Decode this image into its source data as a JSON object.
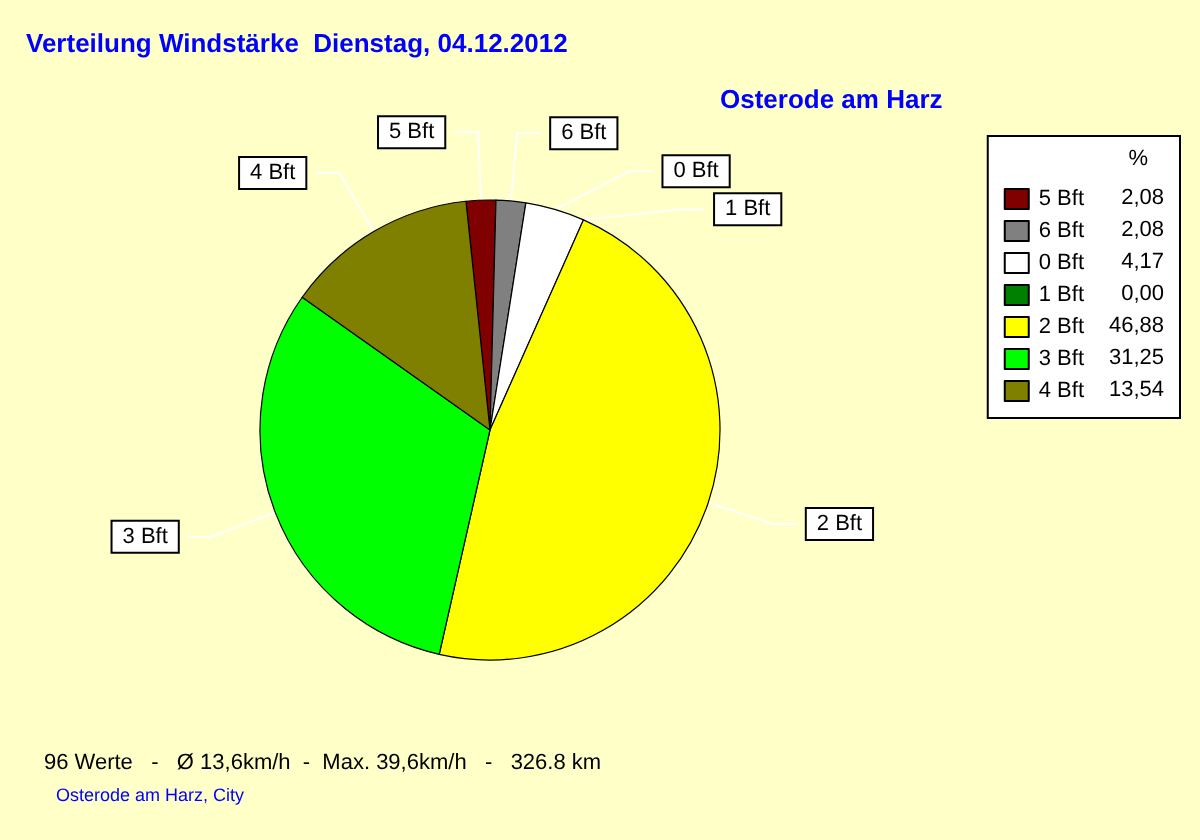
{
  "chart_data": {
    "type": "pie",
    "title": "Verteilung Windstärke  Dienstag, 04.12.2012",
    "subtitle": "Osterode am Harz",
    "legend_title": "%",
    "categories": [
      "5 Bft",
      "6 Bft",
      "0 Bft",
      "1 Bft",
      "2 Bft",
      "3 Bft",
      "4 Bft"
    ],
    "values": [
      2.08,
      2.08,
      4.17,
      0.0,
      46.88,
      31.25,
      13.54
    ],
    "value_labels": [
      "2,08",
      "2,08",
      "4,17",
      "0,00",
      "46,88",
      "31,25",
      "13,54"
    ],
    "colors": [
      "#800000",
      "#808080",
      "#ffffff",
      "#008000",
      "#ffff00",
      "#00ff00",
      "#808000"
    ],
    "legend": "top right",
    "annotations": [
      "96 Werte   -   Ø 13,6km/h  -  Max. 39,6km/h   -   326.8 km",
      "Osterode am Harz, City"
    ]
  }
}
